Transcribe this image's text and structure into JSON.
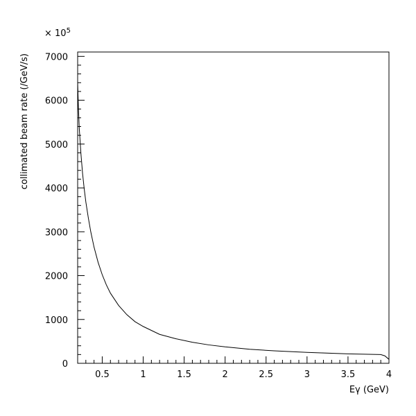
{
  "chart_data": {
    "type": "line",
    "xlabel": "Eγ (GeV)",
    "ylabel": "collimated beam rate (/GeV/s)",
    "y_multiplier": "× 10",
    "y_multiplier_exponent": "5",
    "xlim": [
      0.2,
      4.0
    ],
    "ylim": [
      0,
      7100
    ],
    "x_ticks": [
      0.5,
      1,
      1.5,
      2,
      2.5,
      3,
      3.5,
      4
    ],
    "x_tick_labels": [
      "0.5",
      "1",
      "1.5",
      "2",
      "2.5",
      "3",
      "3.5",
      "4"
    ],
    "y_ticks": [
      0,
      1000,
      2000,
      3000,
      4000,
      5000,
      6000,
      7000
    ],
    "y_tick_labels": [
      "0",
      "1000",
      "2000",
      "3000",
      "4000",
      "5000",
      "6000",
      "7000"
    ],
    "grid": false,
    "series": [
      {
        "x": [
          0.2,
          0.21,
          0.22,
          0.24,
          0.26,
          0.28,
          0.3,
          0.33,
          0.36,
          0.4,
          0.45,
          0.5,
          0.55,
          0.6,
          0.7,
          0.8,
          0.9,
          1.0,
          1.2,
          1.4,
          1.6,
          1.8,
          2.0,
          2.3,
          2.6,
          3.0,
          3.5,
          3.9,
          3.95,
          4.0
        ],
        "y": [
          6400,
          5800,
          5350,
          4780,
          4330,
          3980,
          3680,
          3320,
          3000,
          2650,
          2300,
          2020,
          1790,
          1600,
          1320,
          1110,
          950,
          840,
          660,
          560,
          480,
          420,
          375,
          320,
          285,
          250,
          215,
          200,
          170,
          90
        ]
      }
    ]
  }
}
